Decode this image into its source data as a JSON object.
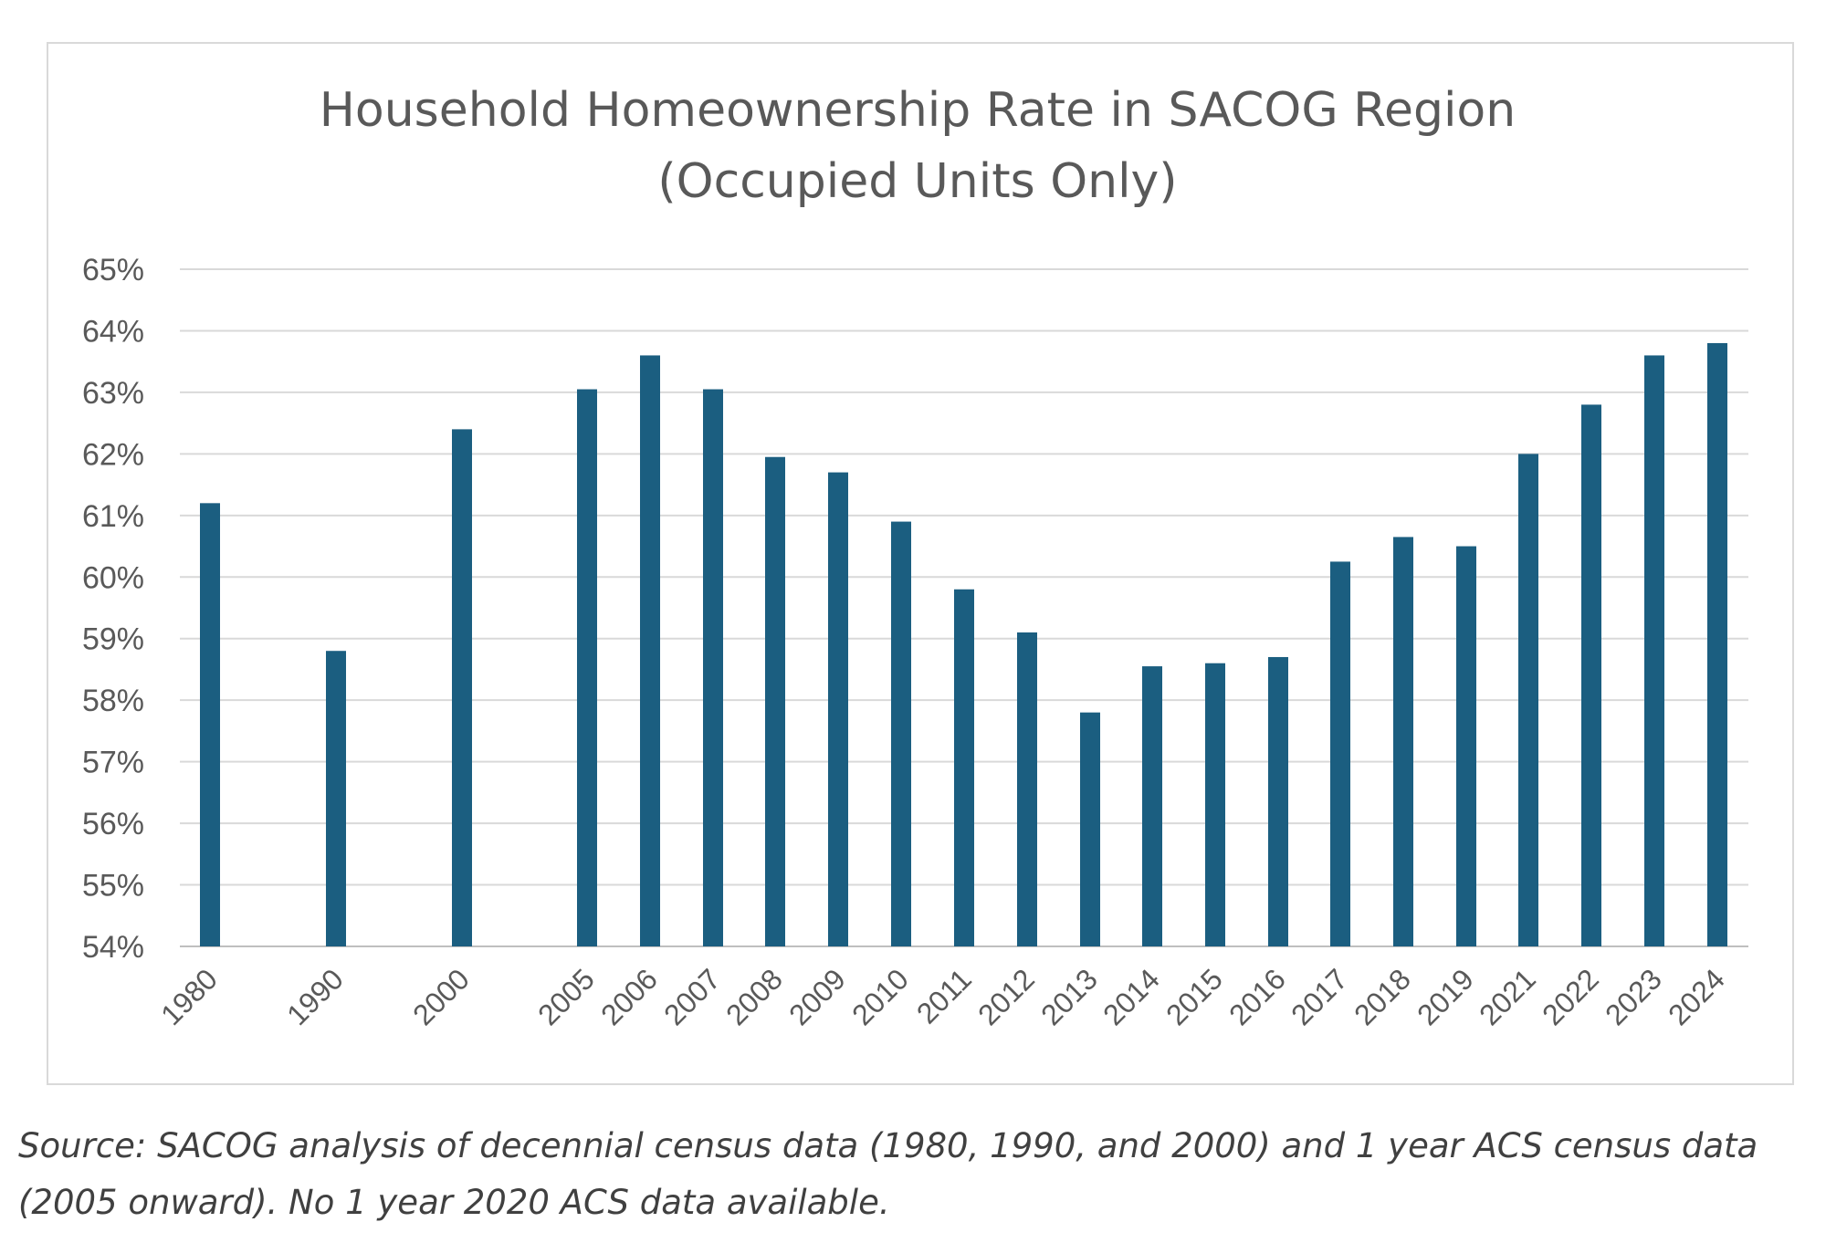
{
  "chart_data": {
    "type": "bar",
    "title": "Household Homeownership Rate in SACOG Region",
    "subtitle": "(Occupied Units Only)",
    "xlabel": "",
    "ylabel": "",
    "categories": [
      "1980",
      "1990",
      "2000",
      "2005",
      "2006",
      "2007",
      "2008",
      "2009",
      "2010",
      "2011",
      "2012",
      "2013",
      "2014",
      "2015",
      "2016",
      "2017",
      "2018",
      "2019",
      "2021",
      "2022",
      "2023",
      "2024"
    ],
    "values": [
      61.2,
      58.8,
      62.4,
      63.05,
      63.6,
      63.05,
      61.95,
      61.7,
      60.9,
      59.8,
      59.1,
      57.8,
      58.55,
      58.6,
      58.7,
      60.25,
      60.65,
      60.5,
      62.0,
      62.8,
      63.6,
      63.8
    ],
    "ylim": [
      54,
      65
    ],
    "yticks": [
      "54%",
      "55%",
      "56%",
      "57%",
      "58%",
      "59%",
      "60%",
      "61%",
      "62%",
      "63%",
      "64%",
      "65%"
    ],
    "grid": true,
    "legend": "none",
    "bar_color": "#1b5e80"
  },
  "note": {
    "source": "Source: SACOG analysis of decennial census data (1980, 1990, and 2000) and 1 year ACS census data (2005 onward). No 1 year 2020 ACS data available."
  }
}
